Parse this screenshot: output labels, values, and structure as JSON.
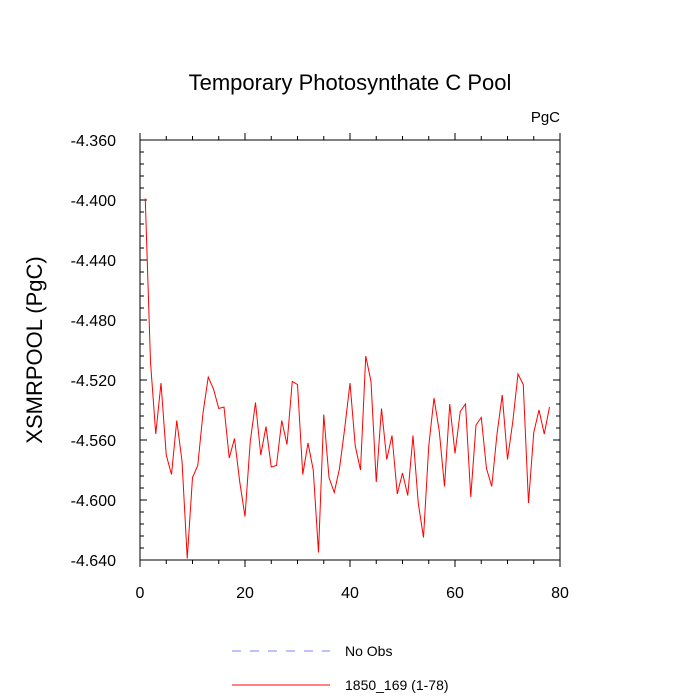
{
  "chart_data": {
    "type": "line",
    "title": "Temporary Photosynthate C Pool",
    "units_label": "PgC",
    "xlabel": "",
    "ylabel": "XSMRPOOL  (PgC)",
    "xlim": [
      0,
      80
    ],
    "ylim": [
      -4.64,
      -4.36
    ],
    "x_ticks": [
      0,
      20,
      40,
      60,
      80
    ],
    "y_ticks": [
      -4.36,
      -4.4,
      -4.44,
      -4.48,
      -4.52,
      -4.56,
      -4.6,
      -4.64
    ],
    "y_tick_labels": [
      "-4.360",
      "-4.400",
      "-4.440",
      "-4.480",
      "-4.520",
      "-4.560",
      "-4.600",
      "-4.640"
    ],
    "legend": [
      {
        "label": "No Obs",
        "color": "#8080ff",
        "style": "dashed"
      },
      {
        "label": "1850_169 (1-78)",
        "color": "#ff0000",
        "style": "solid"
      }
    ],
    "series": [
      {
        "name": "1850_169 (1-78)",
        "color": "#ff0000",
        "x": [
          1,
          2,
          3,
          4,
          5,
          6,
          7,
          8,
          9,
          10,
          11,
          12,
          13,
          14,
          15,
          16,
          17,
          18,
          19,
          20,
          21,
          22,
          23,
          24,
          25,
          26,
          27,
          28,
          29,
          30,
          31,
          32,
          33,
          34,
          35,
          36,
          37,
          38,
          39,
          40,
          41,
          42,
          43,
          44,
          45,
          46,
          47,
          48,
          49,
          50,
          51,
          52,
          53,
          54,
          55,
          56,
          57,
          58,
          59,
          60,
          61,
          62,
          63,
          64,
          65,
          66,
          67,
          68,
          69,
          70,
          71,
          72,
          73,
          74,
          75,
          76,
          77,
          78
        ],
        "values": [
          -4.399,
          -4.508,
          -4.556,
          -4.522,
          -4.57,
          -4.583,
          -4.547,
          -4.574,
          -4.639,
          -4.585,
          -4.577,
          -4.542,
          -4.518,
          -4.526,
          -4.539,
          -4.538,
          -4.572,
          -4.559,
          -4.588,
          -4.611,
          -4.561,
          -4.535,
          -4.57,
          -4.551,
          -4.578,
          -4.577,
          -4.547,
          -4.563,
          -4.521,
          -4.523,
          -4.583,
          -4.562,
          -4.58,
          -4.635,
          -4.543,
          -4.585,
          -4.595,
          -4.579,
          -4.552,
          -4.522,
          -4.564,
          -4.58,
          -4.504,
          -4.521,
          -4.588,
          -4.539,
          -4.573,
          -4.557,
          -4.596,
          -4.582,
          -4.597,
          -4.557,
          -4.602,
          -4.625,
          -4.564,
          -4.532,
          -4.554,
          -4.591,
          -4.536,
          -4.569,
          -4.541,
          -4.536,
          -4.598,
          -4.55,
          -4.545,
          -4.579,
          -4.591,
          -4.556,
          -4.53,
          -4.573,
          -4.548,
          -4.516,
          -4.523,
          -4.602,
          -4.555,
          -4.54,
          -4.556,
          -4.538
        ]
      }
    ]
  }
}
